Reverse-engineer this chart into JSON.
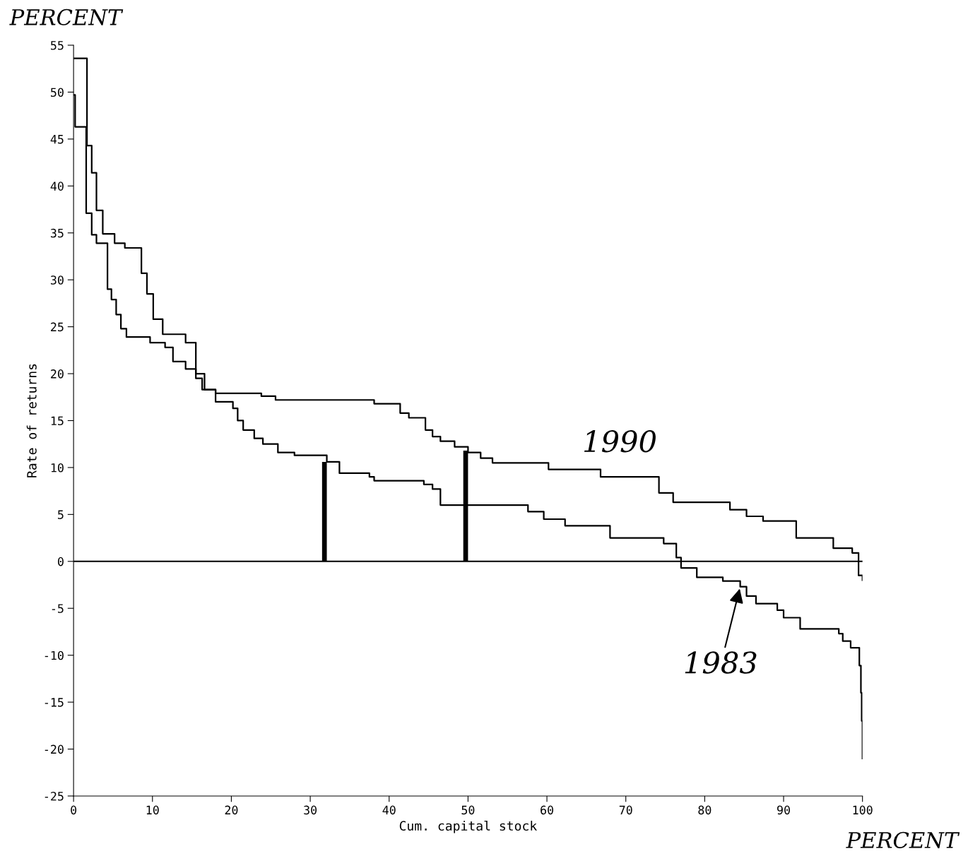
{
  "chart_data": {
    "type": "step",
    "xlabel": "Cum. capital stock",
    "ylabel": "Rate of returns",
    "xlim": [
      0,
      100
    ],
    "xticks": [
      0,
      10,
      20,
      30,
      40,
      50,
      60,
      70,
      80,
      90,
      100
    ],
    "ylim": [
      -25,
      55
    ],
    "yticks": [
      -25,
      -20,
      -15,
      -10,
      -5,
      0,
      5,
      10,
      15,
      20,
      25,
      30,
      35,
      40,
      45,
      50,
      55
    ],
    "grid": false,
    "line_style": "solid",
    "marker": "none",
    "ref_lines": [
      {
        "axis": "y",
        "value": 0,
        "color": "#000000"
      }
    ],
    "annotations": [
      "PERCENT",
      "PERCENT"
    ],
    "series": [
      {
        "name": "1983",
        "color": "#000000",
        "x": [
          0,
          1.7,
          2.3,
          2.9,
          3.7,
          5.2,
          6.5,
          8.6,
          9.3,
          10.1,
          11.3,
          14.2,
          15.5,
          16.6,
          18,
          20.2,
          20.8,
          21.5,
          22.9,
          24,
          25.9,
          28,
          32.1,
          33.7,
          37.5,
          38.1,
          44.4,
          45.5,
          46.5,
          57.6,
          59.6,
          62.3,
          68,
          74.8,
          76.4,
          77,
          79,
          82.3,
          84.5,
          85.3,
          86.5,
          89.2,
          90,
          92.1,
          97,
          97.5,
          98.5,
          99.6,
          99.8,
          99.9,
          100
        ],
        "values": [
          53.6,
          44.3,
          41.4,
          37.4,
          34.9,
          33.9,
          33.4,
          30.7,
          28.5,
          25.8,
          24.2,
          23.3,
          20,
          18.3,
          17,
          16.3,
          15,
          14,
          13.1,
          12.5,
          11.6,
          11.3,
          10.6,
          9.4,
          9.0,
          8.6,
          8.2,
          7.7,
          6.0,
          5.3,
          4.5,
          3.8,
          2.5,
          1.9,
          0.4,
          -0.7,
          -1.7,
          -2.1,
          -2.7,
          -3.7,
          -4.5,
          -5.2,
          -6.0,
          -7.2,
          -7.7,
          -8.5,
          -9.2,
          -11.1,
          -14,
          -17,
          -21
        ]
      },
      {
        "name": "1990",
        "color": "#000000",
        "x": [
          0,
          0.2,
          1.6,
          2.3,
          2.9,
          4.3,
          4.8,
          5.4,
          6,
          6.7,
          9.7,
          11.6,
          12.6,
          14.2,
          15.5,
          16.3,
          18,
          23.8,
          25.6,
          38.1,
          41.4,
          42.5,
          44.6,
          45.5,
          46.5,
          48.3,
          50,
          51.6,
          53.1,
          60.2,
          66.8,
          74.2,
          76,
          83.2,
          85.3,
          87.4,
          91.6,
          96.3,
          98.7,
          99.5,
          100
        ],
        "values": [
          49.7,
          46.3,
          37.1,
          34.8,
          33.9,
          29,
          27.9,
          26.3,
          24.8,
          23.9,
          23.3,
          22.8,
          21.3,
          20.5,
          19.5,
          18.3,
          17.9,
          17.6,
          17.2,
          16.8,
          15.8,
          15.3,
          14,
          13.3,
          12.8,
          12.2,
          11.6,
          11,
          10.5,
          9.8,
          9.0,
          7.3,
          6.3,
          5.5,
          4.8,
          4.3,
          2.5,
          1.4,
          0.9,
          -1.5,
          -2
        ]
      },
      {
        "type": "bar",
        "color": "#000000",
        "x": [
          31.8,
          49.7
        ],
        "values": [
          10.6,
          11.8
        ]
      }
    ]
  }
}
